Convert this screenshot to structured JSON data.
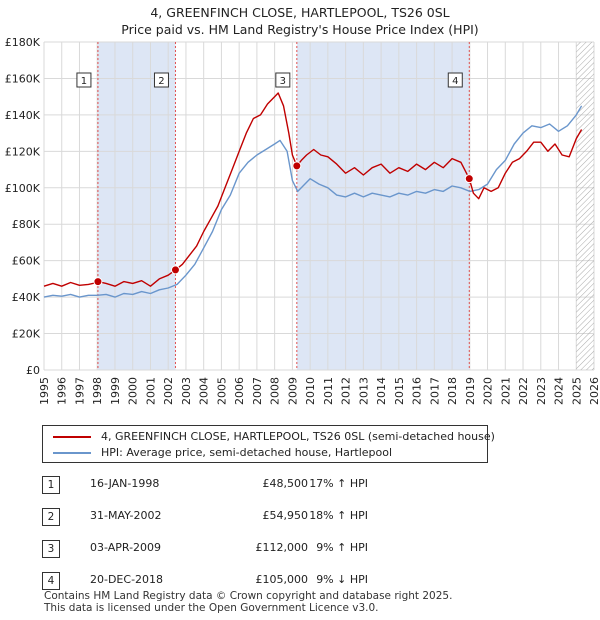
{
  "title": {
    "line1": "4, GREENFINCH CLOSE, HARTLEPOOL, TS26 0SL",
    "line2": "Price paid vs. HM Land Registry's House Price Index (HPI)"
  },
  "colors": {
    "property": "#c00000",
    "hpi": "#6a96cc",
    "shade": "#dde6f5",
    "marker_line": "#e05050",
    "grid": "#d9d9d9",
    "hatch": "#aaaaaa"
  },
  "legend": {
    "property_label": "4, GREENFINCH CLOSE, HARTLEPOOL, TS26 0SL (semi-detached house)",
    "hpi_label": "HPI: Average price, semi-detached house, Hartlepool"
  },
  "transactions": [
    {
      "num": "1",
      "date": "16-JAN-1998",
      "price": "£48,500",
      "hpi": "17% ↑ HPI"
    },
    {
      "num": "2",
      "date": "31-MAY-2002",
      "price": "£54,950",
      "hpi": "18% ↑ HPI"
    },
    {
      "num": "3",
      "date": "03-APR-2009",
      "price": "£112,000",
      "hpi": "9% ↑ HPI"
    },
    {
      "num": "4",
      "date": "20-DEC-2018",
      "price": "£105,000",
      "hpi": "9% ↓ HPI"
    }
  ],
  "footer": {
    "line1": "Contains HM Land Registry data © Crown copyright and database right 2025.",
    "line2": "This data is licensed under the Open Government Licence v3.0."
  },
  "chart_data": {
    "type": "line",
    "title": "4, GREENFINCH CLOSE, HARTLEPOOL, TS26 0SL — Price paid vs. HM Land Registry's House Price Index (HPI)",
    "xlim": [
      1995,
      2026
    ],
    "ylim": [
      0,
      180000
    ],
    "xticks": [
      1995,
      1996,
      1997,
      1998,
      1999,
      2000,
      2001,
      2002,
      2003,
      2004,
      2005,
      2006,
      2007,
      2008,
      2009,
      2010,
      2011,
      2012,
      2013,
      2014,
      2015,
      2016,
      2017,
      2018,
      2019,
      2020,
      2021,
      2022,
      2023,
      2024,
      2025,
      2026
    ],
    "yticks": [
      {
        "value": 0,
        "label": "£0"
      },
      {
        "value": 20000,
        "label": "£20K"
      },
      {
        "value": 40000,
        "label": "£40K"
      },
      {
        "value": 60000,
        "label": "£60K"
      },
      {
        "value": 80000,
        "label": "£80K"
      },
      {
        "value": 100000,
        "label": "£100K"
      },
      {
        "value": 120000,
        "label": "£120K"
      },
      {
        "value": 140000,
        "label": "£140K"
      },
      {
        "value": 160000,
        "label": "£160K"
      },
      {
        "value": 180000,
        "label": "£180K"
      }
    ],
    "shaded_periods": [
      [
        1998.04,
        2002.41
      ],
      [
        2009.25,
        2018.97
      ]
    ],
    "forecast_start": 2025.0,
    "markers": [
      {
        "label": "1",
        "x": 1998.04,
        "y": 48500
      },
      {
        "label": "2",
        "x": 2002.41,
        "y": 54950
      },
      {
        "label": "3",
        "x": 2009.25,
        "y": 112000
      },
      {
        "label": "4",
        "x": 2018.97,
        "y": 105000
      }
    ],
    "series": [
      {
        "name": "4, GREENFINCH CLOSE, HARTLEPOOL, TS26 0SL (semi-detached house)",
        "x": [
          1995.0,
          1995.5,
          1996.0,
          1996.5,
          1997.0,
          1997.5,
          1998.0,
          1998.04,
          1998.5,
          1999.0,
          1999.5,
          2000.0,
          2000.5,
          2001.0,
          2001.5,
          2002.0,
          2002.41,
          2002.8,
          2003.2,
          2003.6,
          2004.0,
          2004.4,
          2004.8,
          2005.2,
          2005.6,
          2006.0,
          2006.4,
          2006.8,
          2007.2,
          2007.6,
          2008.0,
          2008.2,
          2008.5,
          2008.8,
          2009.0,
          2009.25,
          2009.5,
          2009.8,
          2010.2,
          2010.6,
          2011.0,
          2011.5,
          2012.0,
          2012.5,
          2013.0,
          2013.5,
          2014.0,
          2014.5,
          2015.0,
          2015.5,
          2016.0,
          2016.5,
          2017.0,
          2017.5,
          2018.0,
          2018.5,
          2018.97,
          2019.2,
          2019.5,
          2019.8,
          2020.2,
          2020.6,
          2021.0,
          2021.4,
          2021.8,
          2022.2,
          2022.6,
          2023.0,
          2023.4,
          2023.8,
          2024.2,
          2024.6,
          2025.0,
          2025.3
        ],
        "values": [
          46000,
          47500,
          46000,
          48000,
          46500,
          47000,
          48000,
          48500,
          47500,
          46000,
          48500,
          47500,
          49000,
          46000,
          50000,
          52000,
          54950,
          58000,
          63000,
          68000,
          76000,
          83000,
          90000,
          100000,
          110000,
          120000,
          130000,
          138000,
          140000,
          146000,
          150000,
          152000,
          145000,
          130000,
          118000,
          112000,
          115000,
          118000,
          121000,
          118000,
          117000,
          113000,
          108000,
          111000,
          107000,
          111000,
          113000,
          108000,
          111000,
          109000,
          113000,
          110000,
          114000,
          111000,
          116000,
          114000,
          105000,
          97000,
          94000,
          100000,
          98000,
          100000,
          108000,
          114000,
          116000,
          120000,
          125000,
          125000,
          120000,
          124000,
          118000,
          117000,
          127000,
          132000
        ]
      },
      {
        "name": "HPI: Average price, semi-detached house, Hartlepool",
        "x": [
          1995.0,
          1995.5,
          1996.0,
          1996.5,
          1997.0,
          1997.5,
          1998.0,
          1998.5,
          1999.0,
          1999.5,
          2000.0,
          2000.5,
          2001.0,
          2001.5,
          2002.0,
          2002.5,
          2003.0,
          2003.5,
          2004.0,
          2004.5,
          2005.0,
          2005.5,
          2006.0,
          2006.5,
          2007.0,
          2007.5,
          2008.0,
          2008.3,
          2008.7,
          2009.0,
          2009.3,
          2009.6,
          2010.0,
          2010.5,
          2011.0,
          2011.5,
          2012.0,
          2012.5,
          2013.0,
          2013.5,
          2014.0,
          2014.5,
          2015.0,
          2015.5,
          2016.0,
          2016.5,
          2017.0,
          2017.5,
          2018.0,
          2018.5,
          2019.0,
          2019.5,
          2020.0,
          2020.5,
          2021.0,
          2021.5,
          2022.0,
          2022.5,
          2023.0,
          2023.5,
          2024.0,
          2024.5,
          2025.0,
          2025.3
        ],
        "values": [
          40000,
          41000,
          40500,
          41500,
          40000,
          41000,
          41000,
          41500,
          40000,
          42000,
          41500,
          43000,
          42000,
          44000,
          45000,
          47000,
          52000,
          58000,
          67000,
          76000,
          88000,
          96000,
          108000,
          114000,
          118000,
          121000,
          124000,
          126000,
          120000,
          104000,
          98000,
          101000,
          105000,
          102000,
          100000,
          96000,
          95000,
          97000,
          95000,
          97000,
          96000,
          95000,
          97000,
          96000,
          98000,
          97000,
          99000,
          98000,
          101000,
          100000,
          98000,
          99000,
          102000,
          110000,
          115000,
          124000,
          130000,
          134000,
          133000,
          135000,
          131000,
          134000,
          140000,
          145000
        ]
      }
    ]
  }
}
